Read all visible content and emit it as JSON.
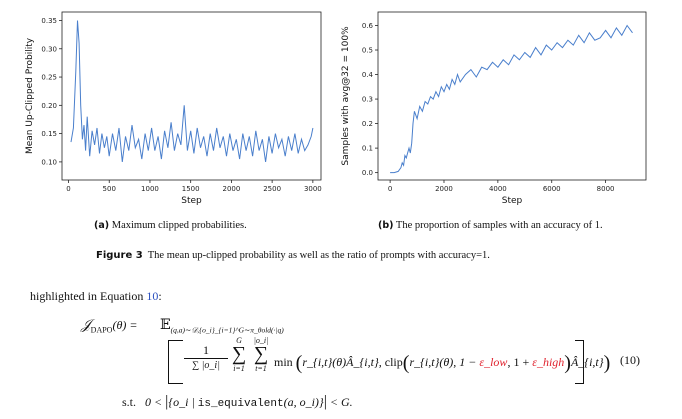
{
  "figure": {
    "panels": [
      {
        "label": "(a)",
        "caption": "Maximum clipped probabilities.",
        "chart_data": {
          "type": "line",
          "title": "",
          "xlabel": "Step",
          "ylabel": "Mean Up-Clipped Probility",
          "xlim": [
            -80,
            3100
          ],
          "ylim": [
            0.068,
            0.365
          ],
          "xticks": [
            0,
            500,
            1000,
            1500,
            2000,
            2500,
            3000
          ],
          "yticks": [
            0.1,
            0.15,
            0.2,
            0.25,
            0.3,
            0.35
          ],
          "xtick_labels": [
            "0",
            "500",
            "1000",
            "1500",
            "2000",
            "2500",
            "3000"
          ],
          "ytick_labels": [
            "0.10",
            "0.15",
            "0.20",
            "0.25",
            "0.30",
            "0.35"
          ],
          "color": "#4a7fcc",
          "series": [
            {
              "name": "mean up-clipped probability",
              "x": [
                30,
                60,
                90,
                110,
                130,
                150,
                170,
                190,
                210,
                230,
                260,
                290,
                320,
                350,
                380,
                410,
                440,
                470,
                500,
                540,
                580,
                620,
                660,
                700,
                740,
                780,
                820,
                860,
                900,
                940,
                980,
                1020,
                1060,
                1100,
                1140,
                1180,
                1220,
                1260,
                1300,
                1340,
                1380,
                1420,
                1460,
                1500,
                1540,
                1580,
                1620,
                1660,
                1700,
                1740,
                1780,
                1820,
                1860,
                1900,
                1940,
                1980,
                2020,
                2060,
                2100,
                2140,
                2180,
                2220,
                2260,
                2300,
                2340,
                2380,
                2420,
                2460,
                2500,
                2540,
                2580,
                2620,
                2660,
                2700,
                2740,
                2780,
                2820,
                2860,
                2900,
                2940,
                2980,
                3000
              ],
              "y": [
                0.135,
                0.16,
                0.26,
                0.35,
                0.31,
                0.2,
                0.14,
                0.165,
                0.12,
                0.18,
                0.11,
                0.155,
                0.13,
                0.16,
                0.115,
                0.15,
                0.125,
                0.145,
                0.11,
                0.15,
                0.12,
                0.16,
                0.1,
                0.145,
                0.12,
                0.165,
                0.125,
                0.14,
                0.105,
                0.15,
                0.12,
                0.16,
                0.12,
                0.145,
                0.105,
                0.155,
                0.125,
                0.17,
                0.12,
                0.15,
                0.13,
                0.2,
                0.12,
                0.155,
                0.115,
                0.16,
                0.125,
                0.145,
                0.11,
                0.15,
                0.12,
                0.16,
                0.125,
                0.145,
                0.11,
                0.15,
                0.12,
                0.14,
                0.105,
                0.15,
                0.12,
                0.145,
                0.11,
                0.155,
                0.12,
                0.14,
                0.1,
                0.145,
                0.115,
                0.15,
                0.125,
                0.14,
                0.11,
                0.145,
                0.12,
                0.15,
                0.115,
                0.14,
                0.12,
                0.13,
                0.145,
                0.16
              ]
            }
          ]
        }
      },
      {
        "label": "(b)",
        "caption": "The proportion of samples with an accuracy of 1.",
        "chart_data": {
          "type": "line",
          "title": "",
          "xlabel": "Step",
          "ylabel": "Samples with avg@32 = 100%",
          "xlim": [
            -450,
            9500
          ],
          "ylim": [
            -0.03,
            0.655
          ],
          "xticks": [
            0,
            2000,
            4000,
            6000,
            8000
          ],
          "yticks": [
            0.0,
            0.1,
            0.2,
            0.3,
            0.4,
            0.5,
            0.6
          ],
          "xtick_labels": [
            "0",
            "2000",
            "4000",
            "6000",
            "8000"
          ],
          "ytick_labels": [
            "0.0",
            "0.1",
            "0.2",
            "0.3",
            "0.4",
            "0.5",
            "0.6"
          ],
          "color": "#4a7fcc",
          "series": [
            {
              "name": "ratio of prompts with accuracy=1",
              "x": [
                0,
                150,
                300,
                400,
                450,
                500,
                550,
                600,
                650,
                700,
                750,
                800,
                850,
                900,
                1000,
                1100,
                1200,
                1300,
                1400,
                1500,
                1600,
                1700,
                1800,
                1900,
                2000,
                2100,
                2200,
                2300,
                2400,
                2500,
                2600,
                2800,
                3000,
                3200,
                3400,
                3600,
                3800,
                4000,
                4200,
                4400,
                4600,
                4800,
                5000,
                5200,
                5400,
                5600,
                5800,
                6000,
                6200,
                6400,
                6600,
                6800,
                7000,
                7200,
                7400,
                7600,
                7800,
                8000,
                8200,
                8400,
                8600,
                8800,
                9000
              ],
              "y": [
                0.0,
                0.0,
                0.005,
                0.02,
                0.04,
                0.03,
                0.07,
                0.06,
                0.08,
                0.1,
                0.08,
                0.12,
                0.2,
                0.25,
                0.22,
                0.27,
                0.25,
                0.29,
                0.28,
                0.31,
                0.3,
                0.33,
                0.31,
                0.35,
                0.33,
                0.36,
                0.34,
                0.38,
                0.36,
                0.4,
                0.37,
                0.4,
                0.42,
                0.39,
                0.43,
                0.42,
                0.45,
                0.43,
                0.46,
                0.44,
                0.48,
                0.46,
                0.49,
                0.47,
                0.51,
                0.48,
                0.52,
                0.5,
                0.53,
                0.51,
                0.54,
                0.52,
                0.56,
                0.53,
                0.57,
                0.54,
                0.55,
                0.58,
                0.55,
                0.59,
                0.56,
                0.6,
                0.57
              ]
            }
          ]
        }
      }
    ],
    "caption_label": "Figure 3",
    "caption_text": "The mean up-clipped probability as well as the ratio of prompts with accuracy=1."
  },
  "body": {
    "sentence_prefix": "highlighted in Equation",
    "sentence_ref": "10",
    "sentence_suffix": ":"
  },
  "equation": {
    "lhs": "𝒥",
    "lhs_sub": "DAPO",
    "lhs_arg": "(θ) =",
    "expect": "𝔼",
    "expect_sub": "(q,a)∼𝒟,{o_i}_{i=1}^G∼π_θold(·|q)",
    "frac_num": "1",
    "frac_den": "∑ |o_i|",
    "sum_outer": "∑",
    "sum_outer_top": "G",
    "sum_outer_bottom": "i=1",
    "sum_inner": "∑",
    "sum_inner_top": "|o_i|",
    "sum_inner_bottom": "t=1",
    "min_text": "min",
    "ratio_term": "r_{i,t}(θ)Â_{i,t},",
    "clip_text": "clip",
    "clip_arg": "r_{i,t}(θ), 1 −",
    "eps_low": "ε_low",
    "clip_mid": ", 1 +",
    "eps_high": "ε_high",
    "clip_tail": "Â_{i,t}",
    "number": "(10)",
    "st_label": "s.t.",
    "st_lhs": "0 <",
    "st_set_open": "{o_i |",
    "st_func": "is_equivalent",
    "st_func_arg": "(a, o_i)}",
    "st_rhs": "< G."
  }
}
